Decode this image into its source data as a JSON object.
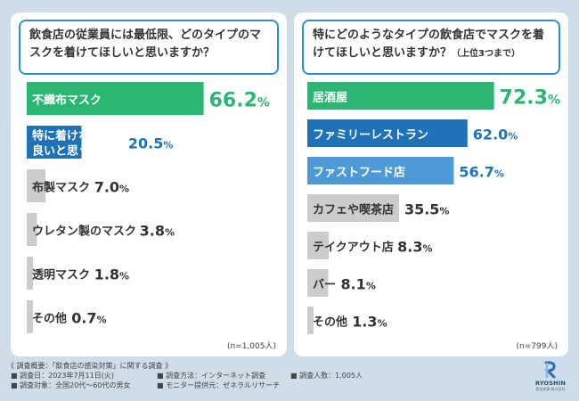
{
  "colors": {
    "background": "#cfdde9",
    "panel": "#ffffff",
    "question_border": "#2f8fd0",
    "green": "#2bb673",
    "blue": "#1f72b8",
    "light_blue": "#4d9ad6",
    "gray_bar": "#cccccc",
    "dark_text": "#333333"
  },
  "chart_data": [
    {
      "type": "bar",
      "orientation": "horizontal",
      "title": "飲食店の従業員には最低限、どのタイプのマスクを着けてほしいと思いますか？",
      "categories": [
        "不織布マスク",
        "特に着けなくても良いと思う",
        "布製マスク",
        "ウレタン製のマスク",
        "透明マスク",
        "その他"
      ],
      "category_lines": [
        [
          "不織布マスク"
        ],
        [
          "特に着けなくても",
          "良いと思う"
        ],
        [
          "布製マスク"
        ],
        [
          "ウレタン製のマスク"
        ],
        [
          "透明マスク"
        ],
        [
          "その他"
        ]
      ],
      "values": [
        66.2,
        20.5,
        7.0,
        3.8,
        1.8,
        0.7
      ],
      "value_labels": [
        "66.2",
        "20.5",
        "7.0",
        "3.8",
        "1.8",
        "0.7"
      ],
      "unit": "%",
      "xlim": [
        0,
        100
      ],
      "sample_size": "(n=1,005人)"
    },
    {
      "type": "bar",
      "orientation": "horizontal",
      "title": "特にどのようなタイプの飲食店でマスクを着けてほしいと思いますか？",
      "title_note": "（上位3つまで）",
      "categories": [
        "居酒屋",
        "ファミリーレストラン",
        "ファストフード店",
        "カフェや喫茶店",
        "テイクアウト店",
        "バー",
        "その他"
      ],
      "category_lines": [
        [
          "居酒屋"
        ],
        [
          "ファミリーレストラン"
        ],
        [
          "ファストフード店"
        ],
        [
          "カフェや喫茶店"
        ],
        [
          "テイクアウト店"
        ],
        [
          "バー"
        ],
        [
          "その他"
        ]
      ],
      "values": [
        72.3,
        62.0,
        56.7,
        35.5,
        8.3,
        8.1,
        1.3
      ],
      "value_labels": [
        "72.3",
        "62.0",
        "56.7",
        "35.5",
        "8.3",
        "8.1",
        "1.3"
      ],
      "unit": "%",
      "xlim": [
        0,
        100
      ],
      "sample_size": "(n=799人)"
    }
  ],
  "footer": {
    "title": "《 調査概要：「飲食店の感染対策」に関する調査 》",
    "date": "■ 調査日：2023年7月11日(火)",
    "method": "■ 調査方法：インターネット調査",
    "count": "■ 調査人数：1,005人",
    "target": "■ 調査対象：全国20代〜60代の男女",
    "provider": "■ モニター提供元：ゼネラルリサーチ"
  },
  "logo": {
    "name": "RYOSHIN",
    "sub": "菱信産業 株式会社"
  }
}
